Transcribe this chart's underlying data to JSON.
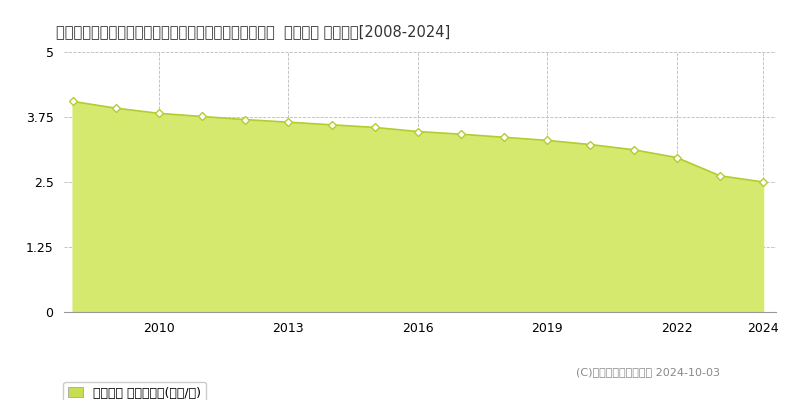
{
  "title": "佐賀県佐賀市川副町大字大詫間字二本松八角４９９番５  基準地価 地価推移[2008-2024]",
  "years": [
    2008,
    2009,
    2010,
    2011,
    2012,
    2013,
    2014,
    2015,
    2016,
    2017,
    2018,
    2019,
    2020,
    2021,
    2022,
    2023,
    2024
  ],
  "values": [
    4.05,
    3.92,
    3.82,
    3.76,
    3.7,
    3.65,
    3.6,
    3.55,
    3.47,
    3.42,
    3.36,
    3.3,
    3.22,
    3.12,
    2.97,
    2.62,
    2.5
  ],
  "line_color": "#b5cc30",
  "fill_color": "#d4e96e",
  "marker_color": "#ffffff",
  "marker_edge_color": "#b5cc30",
  "background_color": "#ffffff",
  "grid_color": "#bbbbbb",
  "ylim": [
    0,
    5
  ],
  "yticks": [
    0,
    1.25,
    2.5,
    3.75,
    5
  ],
  "ytick_labels": [
    "0",
    "1.25",
    "2.5",
    "3.75",
    "5"
  ],
  "xtick_positions": [
    2010,
    2013,
    2016,
    2019,
    2022,
    2024
  ],
  "xlim_left": 2007.8,
  "xlim_right": 2024.3,
  "legend_label": "基準地価 平均坪単価(万円/坪)",
  "copyright_text": "(C)土地価格ドットコム 2024-10-03",
  "title_fontsize": 10.5,
  "axis_fontsize": 9,
  "legend_fontsize": 9,
  "copyright_fontsize": 8,
  "legend_square_color": "#c8de50"
}
